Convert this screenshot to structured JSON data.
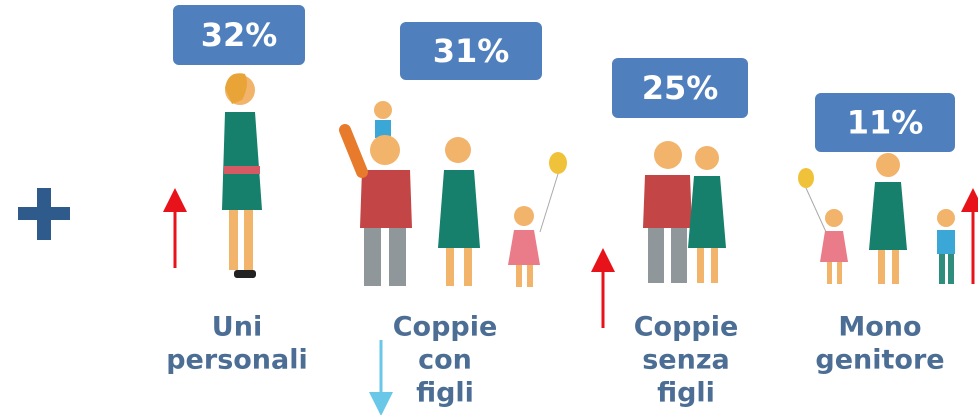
{
  "items": [
    {
      "percent": "32%",
      "label": [
        "Uni",
        "personali"
      ]
    },
    {
      "percent": "31%",
      "label": [
        "Coppie",
        "con",
        "figli"
      ]
    },
    {
      "percent": "25%",
      "label": [
        "Coppie",
        "senza",
        "figli"
      ]
    },
    {
      "percent": "11%",
      "label": [
        "Mono",
        "genitore"
      ]
    }
  ]
}
